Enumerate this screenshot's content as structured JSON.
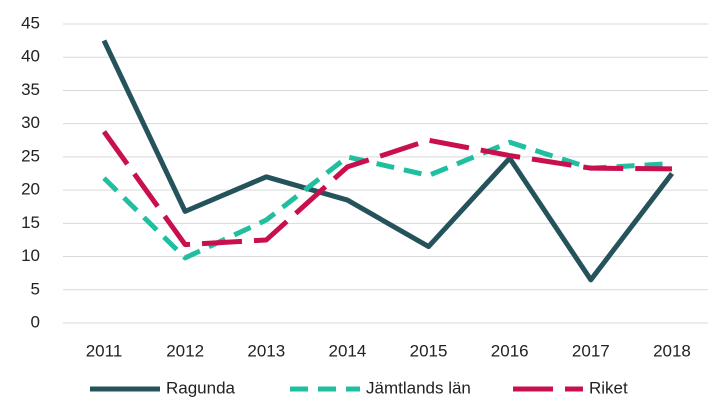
{
  "chart_data": {
    "type": "line",
    "categories": [
      "2011",
      "2012",
      "2013",
      "2014",
      "2015",
      "2016",
      "2017",
      "2018"
    ],
    "series": [
      {
        "name": "Ragunda",
        "color": "#25535b",
        "dash": "solid",
        "values": [
          42.5,
          16.8,
          22,
          18.5,
          11.5,
          24.8,
          6.5,
          22.5
        ]
      },
      {
        "name": "Jämtlands län",
        "color": "#1fbf9f",
        "dash": "dashed",
        "values": [
          21.8,
          9.8,
          15.5,
          25,
          22.2,
          27.2,
          23.3,
          24
        ]
      },
      {
        "name": "Riket",
        "color": "#c8104e",
        "dash": "longdash",
        "values": [
          28.8,
          11.8,
          12.5,
          23.5,
          27.5,
          25.2,
          23.3,
          23.2
        ]
      }
    ],
    "ylim": [
      0,
      45
    ],
    "yticks": [
      0,
      5,
      10,
      15,
      20,
      25,
      30,
      35,
      40,
      45
    ],
    "grid": true,
    "legend": "bottom"
  }
}
